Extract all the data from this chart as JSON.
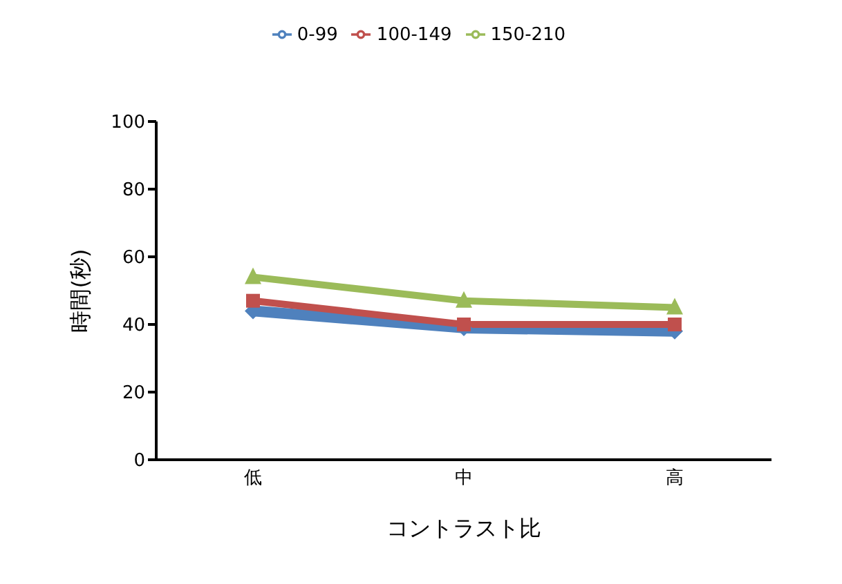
{
  "chart_data": {
    "type": "line",
    "xlabel": "コントラスト比",
    "ylabel": "時間(秒)",
    "categories": [
      "低",
      "中",
      "高"
    ],
    "series": [
      {
        "name": "0-99",
        "color": "#4f81bd",
        "marker": "diamond",
        "values": [
          44,
          39,
          38
        ]
      },
      {
        "name": "100-149",
        "color": "#c0504d",
        "marker": "square",
        "values": [
          47,
          40,
          40
        ]
      },
      {
        "name": "150-210",
        "color": "#9bbb59",
        "marker": "triangle",
        "values": [
          54,
          47,
          45
        ]
      }
    ],
    "ylim": [
      0,
      100
    ],
    "yticks": [
      0,
      20,
      40,
      60,
      80,
      100
    ],
    "grid": false,
    "legend": "top"
  }
}
